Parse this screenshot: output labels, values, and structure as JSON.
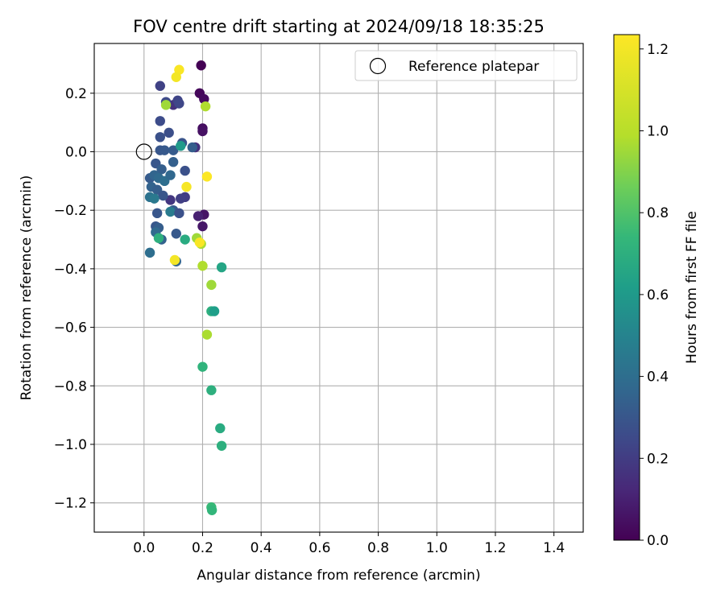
{
  "chart_data": {
    "type": "scatter",
    "title": "FOV centre drift starting at 2024/09/18 18:35:25",
    "xlabel": "Angular distance from reference (arcmin)",
    "ylabel": "Rotation from reference (arcmin)",
    "xlim": [
      -0.17,
      1.5
    ],
    "ylim": [
      -1.3,
      0.37
    ],
    "x_ticks": [
      0.0,
      0.2,
      0.4,
      0.6,
      0.8,
      1.0,
      1.2,
      1.4
    ],
    "x_tick_labels": [
      "0.0",
      "0.2",
      "0.4",
      "0.6",
      "0.8",
      "1.0",
      "1.2",
      "1.4"
    ],
    "y_ticks": [
      0.2,
      0.0,
      -0.2,
      -0.4,
      -0.6,
      -0.8,
      -1.0,
      -1.2
    ],
    "y_tick_labels": [
      "0.2",
      "0.0",
      "−0.2",
      "−0.4",
      "−0.6",
      "−0.8",
      "−1.0",
      "−1.2"
    ],
    "grid": true,
    "legend": {
      "position": "top-right",
      "entries": [
        "Reference platepar"
      ]
    },
    "reference_point": {
      "x": 0.0,
      "y": 0.0
    },
    "colorbar": {
      "label": "Hours from first FF file",
      "range": [
        0.0,
        1.235
      ],
      "ticks": [
        0.0,
        0.2,
        0.4,
        0.6,
        0.8,
        1.0,
        1.2
      ],
      "tick_labels": [
        "0.0",
        "0.2",
        "0.4",
        "0.6",
        "0.8",
        "1.0",
        "1.2"
      ],
      "colormap": "viridis"
    },
    "points": [
      {
        "x": 0.195,
        "y": 0.295,
        "c": 0.0
      },
      {
        "x": 0.19,
        "y": 0.2,
        "c": 0.02
      },
      {
        "x": 0.205,
        "y": 0.18,
        "c": 0.03
      },
      {
        "x": 0.2,
        "y": 0.08,
        "c": 0.04
      },
      {
        "x": 0.2,
        "y": 0.07,
        "c": 0.05
      },
      {
        "x": 0.205,
        "y": -0.215,
        "c": 0.06
      },
      {
        "x": 0.2,
        "y": -0.255,
        "c": 0.07
      },
      {
        "x": 0.185,
        "y": -0.22,
        "c": 0.1
      },
      {
        "x": 0.175,
        "y": 0.015,
        "c": 0.15
      },
      {
        "x": 0.1,
        "y": 0.16,
        "c": 0.16
      },
      {
        "x": 0.09,
        "y": -0.165,
        "c": 0.18
      },
      {
        "x": 0.14,
        "y": -0.155,
        "c": 0.2
      },
      {
        "x": 0.125,
        "y": -0.16,
        "c": 0.21
      },
      {
        "x": 0.055,
        "y": 0.225,
        "c": 0.22
      },
      {
        "x": 0.115,
        "y": 0.175,
        "c": 0.23
      },
      {
        "x": 0.12,
        "y": 0.165,
        "c": 0.24
      },
      {
        "x": 0.075,
        "y": 0.17,
        "c": 0.25
      },
      {
        "x": 0.055,
        "y": 0.105,
        "c": 0.26
      },
      {
        "x": 0.085,
        "y": 0.065,
        "c": 0.27
      },
      {
        "x": 0.055,
        "y": 0.05,
        "c": 0.28
      },
      {
        "x": 0.13,
        "y": 0.03,
        "c": 0.29
      },
      {
        "x": 0.055,
        "y": 0.005,
        "c": 0.3
      },
      {
        "x": 0.07,
        "y": 0.005,
        "c": 0.31
      },
      {
        "x": 0.1,
        "y": 0.005,
        "c": 0.32
      },
      {
        "x": 0.165,
        "y": 0.015,
        "c": 0.33
      },
      {
        "x": 0.1,
        "y": -0.035,
        "c": 0.34
      },
      {
        "x": 0.04,
        "y": -0.04,
        "c": 0.3
      },
      {
        "x": 0.06,
        "y": -0.06,
        "c": 0.33
      },
      {
        "x": 0.14,
        "y": -0.065,
        "c": 0.28
      },
      {
        "x": 0.02,
        "y": -0.09,
        "c": 0.32
      },
      {
        "x": 0.035,
        "y": -0.08,
        "c": 0.36
      },
      {
        "x": 0.05,
        "y": -0.09,
        "c": 0.38
      },
      {
        "x": 0.07,
        "y": -0.1,
        "c": 0.4
      },
      {
        "x": 0.09,
        "y": -0.08,
        "c": 0.37
      },
      {
        "x": 0.025,
        "y": -0.12,
        "c": 0.35
      },
      {
        "x": 0.045,
        "y": -0.13,
        "c": 0.33
      },
      {
        "x": 0.065,
        "y": -0.15,
        "c": 0.3
      },
      {
        "x": 0.02,
        "y": -0.155,
        "c": 0.42
      },
      {
        "x": 0.035,
        "y": -0.16,
        "c": 0.45
      },
      {
        "x": 0.1,
        "y": -0.2,
        "c": 0.32
      },
      {
        "x": 0.09,
        "y": -0.205,
        "c": 0.46
      },
      {
        "x": 0.045,
        "y": -0.21,
        "c": 0.3
      },
      {
        "x": 0.12,
        "y": -0.21,
        "c": 0.28
      },
      {
        "x": 0.04,
        "y": -0.255,
        "c": 0.3
      },
      {
        "x": 0.05,
        "y": -0.26,
        "c": 0.33
      },
      {
        "x": 0.04,
        "y": -0.275,
        "c": 0.38
      },
      {
        "x": 0.11,
        "y": -0.28,
        "c": 0.31
      },
      {
        "x": 0.06,
        "y": -0.3,
        "c": 0.35
      },
      {
        "x": 0.02,
        "y": -0.345,
        "c": 0.4
      },
      {
        "x": 0.11,
        "y": -0.375,
        "c": 0.36
      },
      {
        "x": 0.125,
        "y": 0.02,
        "c": 0.6
      },
      {
        "x": 0.05,
        "y": -0.295,
        "c": 0.7
      },
      {
        "x": 0.14,
        "y": -0.3,
        "c": 0.68
      },
      {
        "x": 0.075,
        "y": 0.16,
        "c": 0.95
      },
      {
        "x": 0.21,
        "y": 0.155,
        "c": 0.98
      },
      {
        "x": 0.18,
        "y": -0.295,
        "c": 0.95
      },
      {
        "x": 0.195,
        "y": -0.315,
        "c": 0.97
      },
      {
        "x": 0.2,
        "y": -0.39,
        "c": 0.98
      },
      {
        "x": 0.265,
        "y": -0.395,
        "c": 0.65
      },
      {
        "x": 0.23,
        "y": -0.455,
        "c": 0.95
      },
      {
        "x": 0.23,
        "y": -0.545,
        "c": 0.7
      },
      {
        "x": 0.24,
        "y": -0.545,
        "c": 0.62
      },
      {
        "x": 0.215,
        "y": -0.625,
        "c": 0.97
      },
      {
        "x": 0.2,
        "y": -0.735,
        "c": 0.72
      },
      {
        "x": 0.23,
        "y": -0.815,
        "c": 0.7
      },
      {
        "x": 0.26,
        "y": -0.945,
        "c": 0.68
      },
      {
        "x": 0.265,
        "y": -1.005,
        "c": 0.7
      },
      {
        "x": 0.23,
        "y": -1.215,
        "c": 0.75
      },
      {
        "x": 0.232,
        "y": -1.225,
        "c": 0.73
      },
      {
        "x": 0.12,
        "y": 0.28,
        "c": 1.22
      },
      {
        "x": 0.11,
        "y": 0.255,
        "c": 1.2
      },
      {
        "x": 0.215,
        "y": -0.085,
        "c": 1.23
      },
      {
        "x": 0.145,
        "y": -0.12,
        "c": 1.21
      },
      {
        "x": 0.19,
        "y": -0.31,
        "c": 1.22
      },
      {
        "x": 0.105,
        "y": -0.37,
        "c": 1.2
      }
    ]
  }
}
